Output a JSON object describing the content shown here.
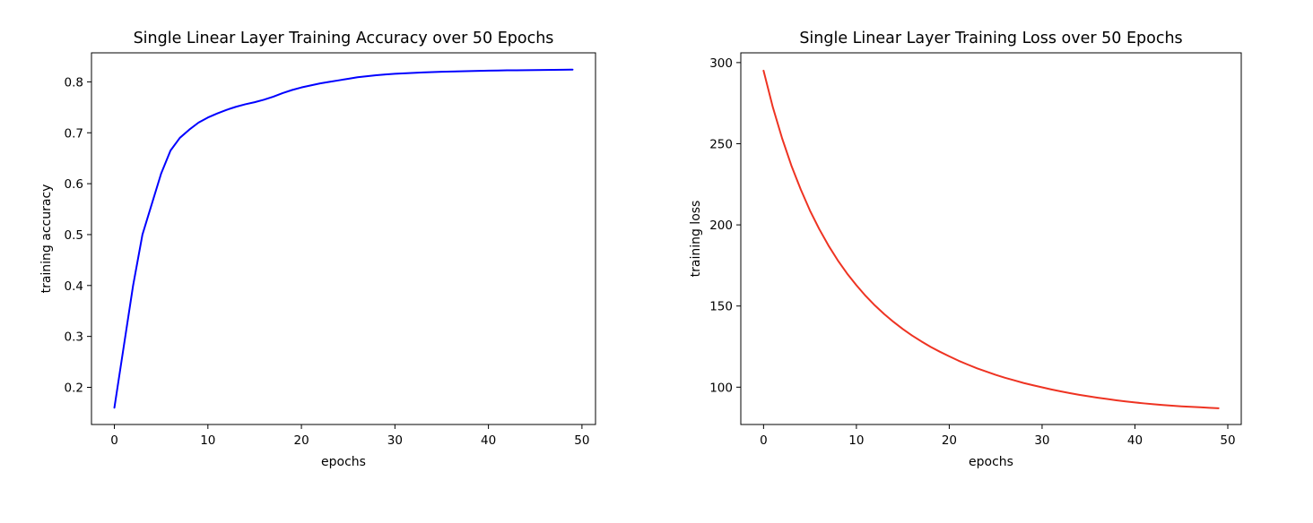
{
  "chart_data": [
    {
      "type": "line",
      "title": "Single Linear Layer Training Accuracy over 50 Epochs",
      "xlabel": "epochs",
      "ylabel": "training accuracy",
      "xlim": [
        -2.45,
        51.45
      ],
      "ylim": [
        0.127,
        0.857
      ],
      "x_ticks": [
        0,
        10,
        20,
        30,
        40,
        50
      ],
      "y_ticks": [
        0.2,
        0.3,
        0.4,
        0.5,
        0.6,
        0.7,
        0.8
      ],
      "grid": false,
      "legend": "none",
      "series": [
        {
          "color": "#0000ff",
          "x": [
            0,
            1,
            2,
            3,
            4,
            5,
            6,
            7,
            8,
            9,
            10,
            11,
            12,
            13,
            14,
            15,
            16,
            17,
            18,
            19,
            20,
            21,
            22,
            23,
            24,
            25,
            26,
            27,
            28,
            29,
            30,
            31,
            32,
            33,
            34,
            35,
            36,
            37,
            38,
            39,
            40,
            41,
            42,
            43,
            44,
            45,
            46,
            47,
            48,
            49
          ],
          "y": [
            0.16,
            0.28,
            0.4,
            0.5,
            0.56,
            0.62,
            0.665,
            0.69,
            0.706,
            0.72,
            0.73,
            0.738,
            0.745,
            0.751,
            0.756,
            0.76,
            0.765,
            0.771,
            0.778,
            0.784,
            0.789,
            0.793,
            0.797,
            0.8,
            0.803,
            0.806,
            0.809,
            0.811,
            0.813,
            0.8145,
            0.8158,
            0.8168,
            0.8177,
            0.8185,
            0.8192,
            0.8198,
            0.8203,
            0.8208,
            0.8212,
            0.8216,
            0.822,
            0.8223,
            0.8226,
            0.8228,
            0.823,
            0.8232,
            0.8234,
            0.8236,
            0.8238,
            0.824
          ]
        }
      ]
    },
    {
      "type": "line",
      "title": "Single Linear Layer Training Loss over 50 Epochs",
      "xlabel": "epochs",
      "ylabel": "training loss",
      "xlim": [
        -2.45,
        51.45
      ],
      "ylim": [
        77.0,
        306.0
      ],
      "x_ticks": [
        0,
        10,
        20,
        30,
        40,
        50
      ],
      "y_ticks": [
        100,
        150,
        200,
        250,
        300
      ],
      "grid": false,
      "legend": "none",
      "series": [
        {
          "color": "#ee3322",
          "x": [
            0,
            1,
            2,
            3,
            4,
            5,
            6,
            7,
            8,
            9,
            10,
            11,
            12,
            13,
            14,
            15,
            16,
            17,
            18,
            19,
            20,
            21,
            22,
            23,
            24,
            25,
            26,
            27,
            28,
            29,
            30,
            31,
            32,
            33,
            34,
            35,
            36,
            37,
            38,
            39,
            40,
            41,
            42,
            43,
            44,
            45,
            46,
            47,
            48,
            49
          ],
          "y": [
            295.0,
            272.5,
            253.3,
            236.5,
            221.9,
            208.8,
            197.4,
            187.2,
            178.1,
            170.0,
            162.8,
            156.2,
            150.3,
            145.0,
            140.2,
            135.8,
            131.8,
            128.2,
            124.8,
            121.8,
            119.0,
            116.3,
            113.9,
            111.6,
            109.6,
            107.6,
            105.8,
            104.2,
            102.6,
            101.2,
            99.9,
            98.6,
            97.4,
            96.3,
            95.3,
            94.4,
            93.5,
            92.7,
            91.9,
            91.2,
            90.6,
            90.0,
            89.5,
            89.0,
            88.6,
            88.2,
            87.9,
            87.6,
            87.3,
            87.0
          ]
        }
      ]
    }
  ]
}
